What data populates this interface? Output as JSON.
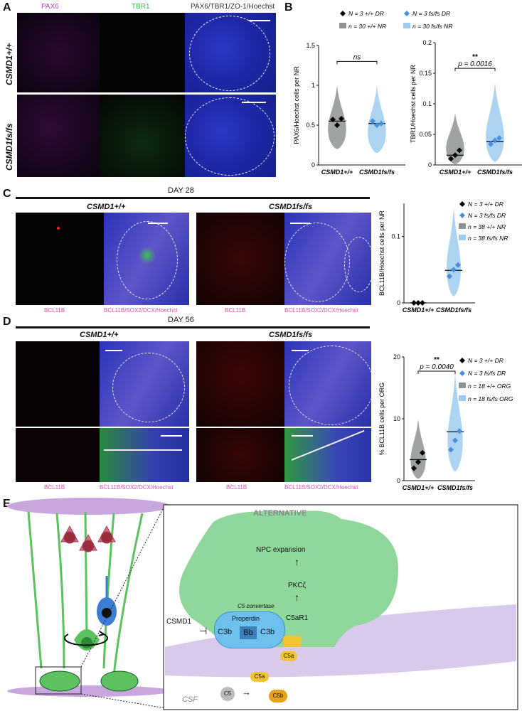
{
  "panelA": {
    "label": "A",
    "headers": {
      "pax6": "PAX6",
      "tbr1": "TBR1",
      "merge": "PAX6/TBR1/ZO-1/Hoechst"
    },
    "rows": [
      "CSMD1+/+",
      "CSMD1fs/fs"
    ]
  },
  "panelB": {
    "label": "B",
    "legend": {
      "dr_wt": "N = 3 +/+ DR",
      "dr_fs": "N = 3 fs/fs DR",
      "nr_wt": "n = 30 +/+ NR",
      "nr_fs": "n = 30 fs/fs NR"
    },
    "colors": {
      "wt": "#8e948f",
      "fs": "#9ecbf0",
      "wt_dot": "#000000",
      "fs_dot": "#4a8fdd"
    }
  },
  "panelC": {
    "label": "C",
    "day": "DAY 28",
    "group_wt": "CSMD1+/+",
    "group_fs": "CSMD1fs/fs",
    "caption_single": "BCL11B",
    "caption_merge": "BCL11B/SOX2/DCX/Hoechst",
    "legend": {
      "dr_wt": "N = 3 +/+ DR",
      "dr_fs": "N = 3 fs/fs DR",
      "nr_wt": "n = 38 +/+ NR",
      "nr_fs": "n = 38 fs/fs NR"
    }
  },
  "panelD": {
    "label": "D",
    "day": "DAY 56",
    "group_wt": "CSMD1+/+",
    "group_fs": "CSMD1fs/fs",
    "caption_single": "BCL11B",
    "caption_merge": "BCL11B/SOX2/DCX/Hoechst",
    "legend": {
      "dr_wt": "N = 3 +/+ DR",
      "dr_fs": "N = 3 fs/fs DR",
      "org_wt": "n = 18 +/+ ORG",
      "org_fs": "n = 18 fs/fs ORG"
    }
  },
  "panelE": {
    "label": "E",
    "pathway": "ALTERNATIVE",
    "npc": "NPC expansion",
    "pkc": "PKCζ",
    "c5ar1": "C5aR1",
    "convertase": "C5 convertase",
    "properdin": "Properdin",
    "c3b": "C3b",
    "bb": "Bb",
    "csmd1": "CSMD1",
    "c5": "C5",
    "c5a": "C5a",
    "c5b": "C5b",
    "csf": "CSF"
  },
  "chart_data": [
    {
      "type": "violin",
      "panel": "B-left",
      "ylabel": "PAX6/Hoechst cells per NR",
      "categories": [
        "CSMD1+/+",
        "CSMD1fs/fs"
      ],
      "ylim": [
        0,
        1.5
      ],
      "yticks": [
        0.0,
        0.5,
        1.0,
        1.5
      ],
      "means": [
        0.55,
        0.52
      ],
      "dr_points": [
        [
          0.57,
          0.5,
          0.58
        ],
        [
          0.55,
          0.5,
          0.52
        ]
      ],
      "annotation": "ns"
    },
    {
      "type": "violin",
      "panel": "B-right",
      "ylabel": "TBR1/Hoechst cells per NR",
      "categories": [
        "CSMD1+/+",
        "CSMD1fs/fs"
      ],
      "ylim": [
        0,
        0.2
      ],
      "yticks": [
        0.0,
        0.05,
        0.1,
        0.15,
        0.2
      ],
      "means": [
        0.016,
        0.038
      ],
      "dr_points": [
        [
          0.01,
          0.016,
          0.024
        ],
        [
          0.034,
          0.04,
          0.044
        ]
      ],
      "annotation": "p = 0.0016",
      "stars": "**"
    },
    {
      "type": "violin",
      "panel": "C",
      "ylabel": "BCL11B/Hoechst cells per NR",
      "categories": [
        "CSMD1+/+",
        "CSMD1fs/fs"
      ],
      "ylim": [
        0,
        0.15
      ],
      "yticks": [
        0.0,
        0.1
      ],
      "means": [
        0.0,
        0.049
      ],
      "dr_points": [
        [
          0.0,
          0.0,
          0.0
        ],
        [
          0.04,
          0.05,
          0.057
        ]
      ]
    },
    {
      "type": "violin",
      "panel": "D",
      "ylabel": "% BCL11B cells per ORG",
      "categories": [
        "CSMD1+/+",
        "CSMD1fs/fs"
      ],
      "ylim": [
        0,
        20
      ],
      "yticks": [
        0,
        10,
        20
      ],
      "means": [
        3.4,
        7.9
      ],
      "dr_points": [
        [
          2.0,
          3.0,
          4.5
        ],
        [
          5.0,
          6.5,
          8.0
        ]
      ],
      "annotation": "p = 0.0040",
      "stars": "**"
    }
  ]
}
